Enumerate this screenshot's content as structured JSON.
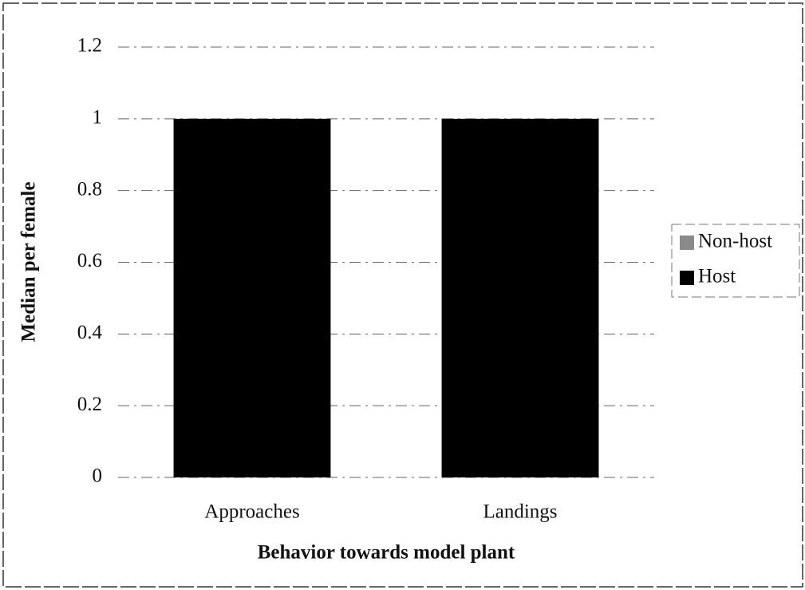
{
  "chart_data": {
    "type": "stacked_bar",
    "x_label": "Behavior towards model plant",
    "y_label": "Median per female",
    "categories": [
      "Approaches",
      "Landings"
    ],
    "series": [
      {
        "name": "Non-host",
        "color": "#8a8a8a",
        "values": [
          0,
          0
        ]
      },
      {
        "name": "Host",
        "color": "#000000",
        "values": [
          1,
          1
        ]
      }
    ],
    "ylim": [
      0,
      1.2
    ],
    "yticks": [
      0,
      0.2,
      0.4,
      0.6,
      0.8,
      1,
      1.2
    ],
    "grid": true,
    "legend": "right"
  }
}
